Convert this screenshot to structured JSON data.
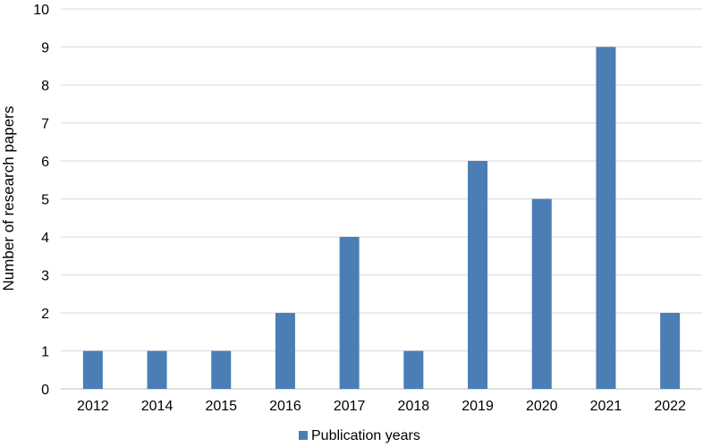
{
  "chart_data": {
    "type": "bar",
    "categories": [
      "2012",
      "2014",
      "2015",
      "2016",
      "2017",
      "2018",
      "2019",
      "2020",
      "2021",
      "2022"
    ],
    "series": [
      {
        "name": "Publication years",
        "values": [
          1,
          1,
          1,
          2,
          4,
          1,
          6,
          5,
          9,
          2
        ],
        "color": "#4a7eb5"
      }
    ],
    "title": "",
    "xlabel": "",
    "ylabel": "Number of research papers",
    "ylim": [
      0,
      10
    ],
    "yticks": [
      0,
      1,
      2,
      3,
      4,
      5,
      6,
      7,
      8,
      9,
      10
    ],
    "grid": true,
    "legend": "bottom"
  }
}
